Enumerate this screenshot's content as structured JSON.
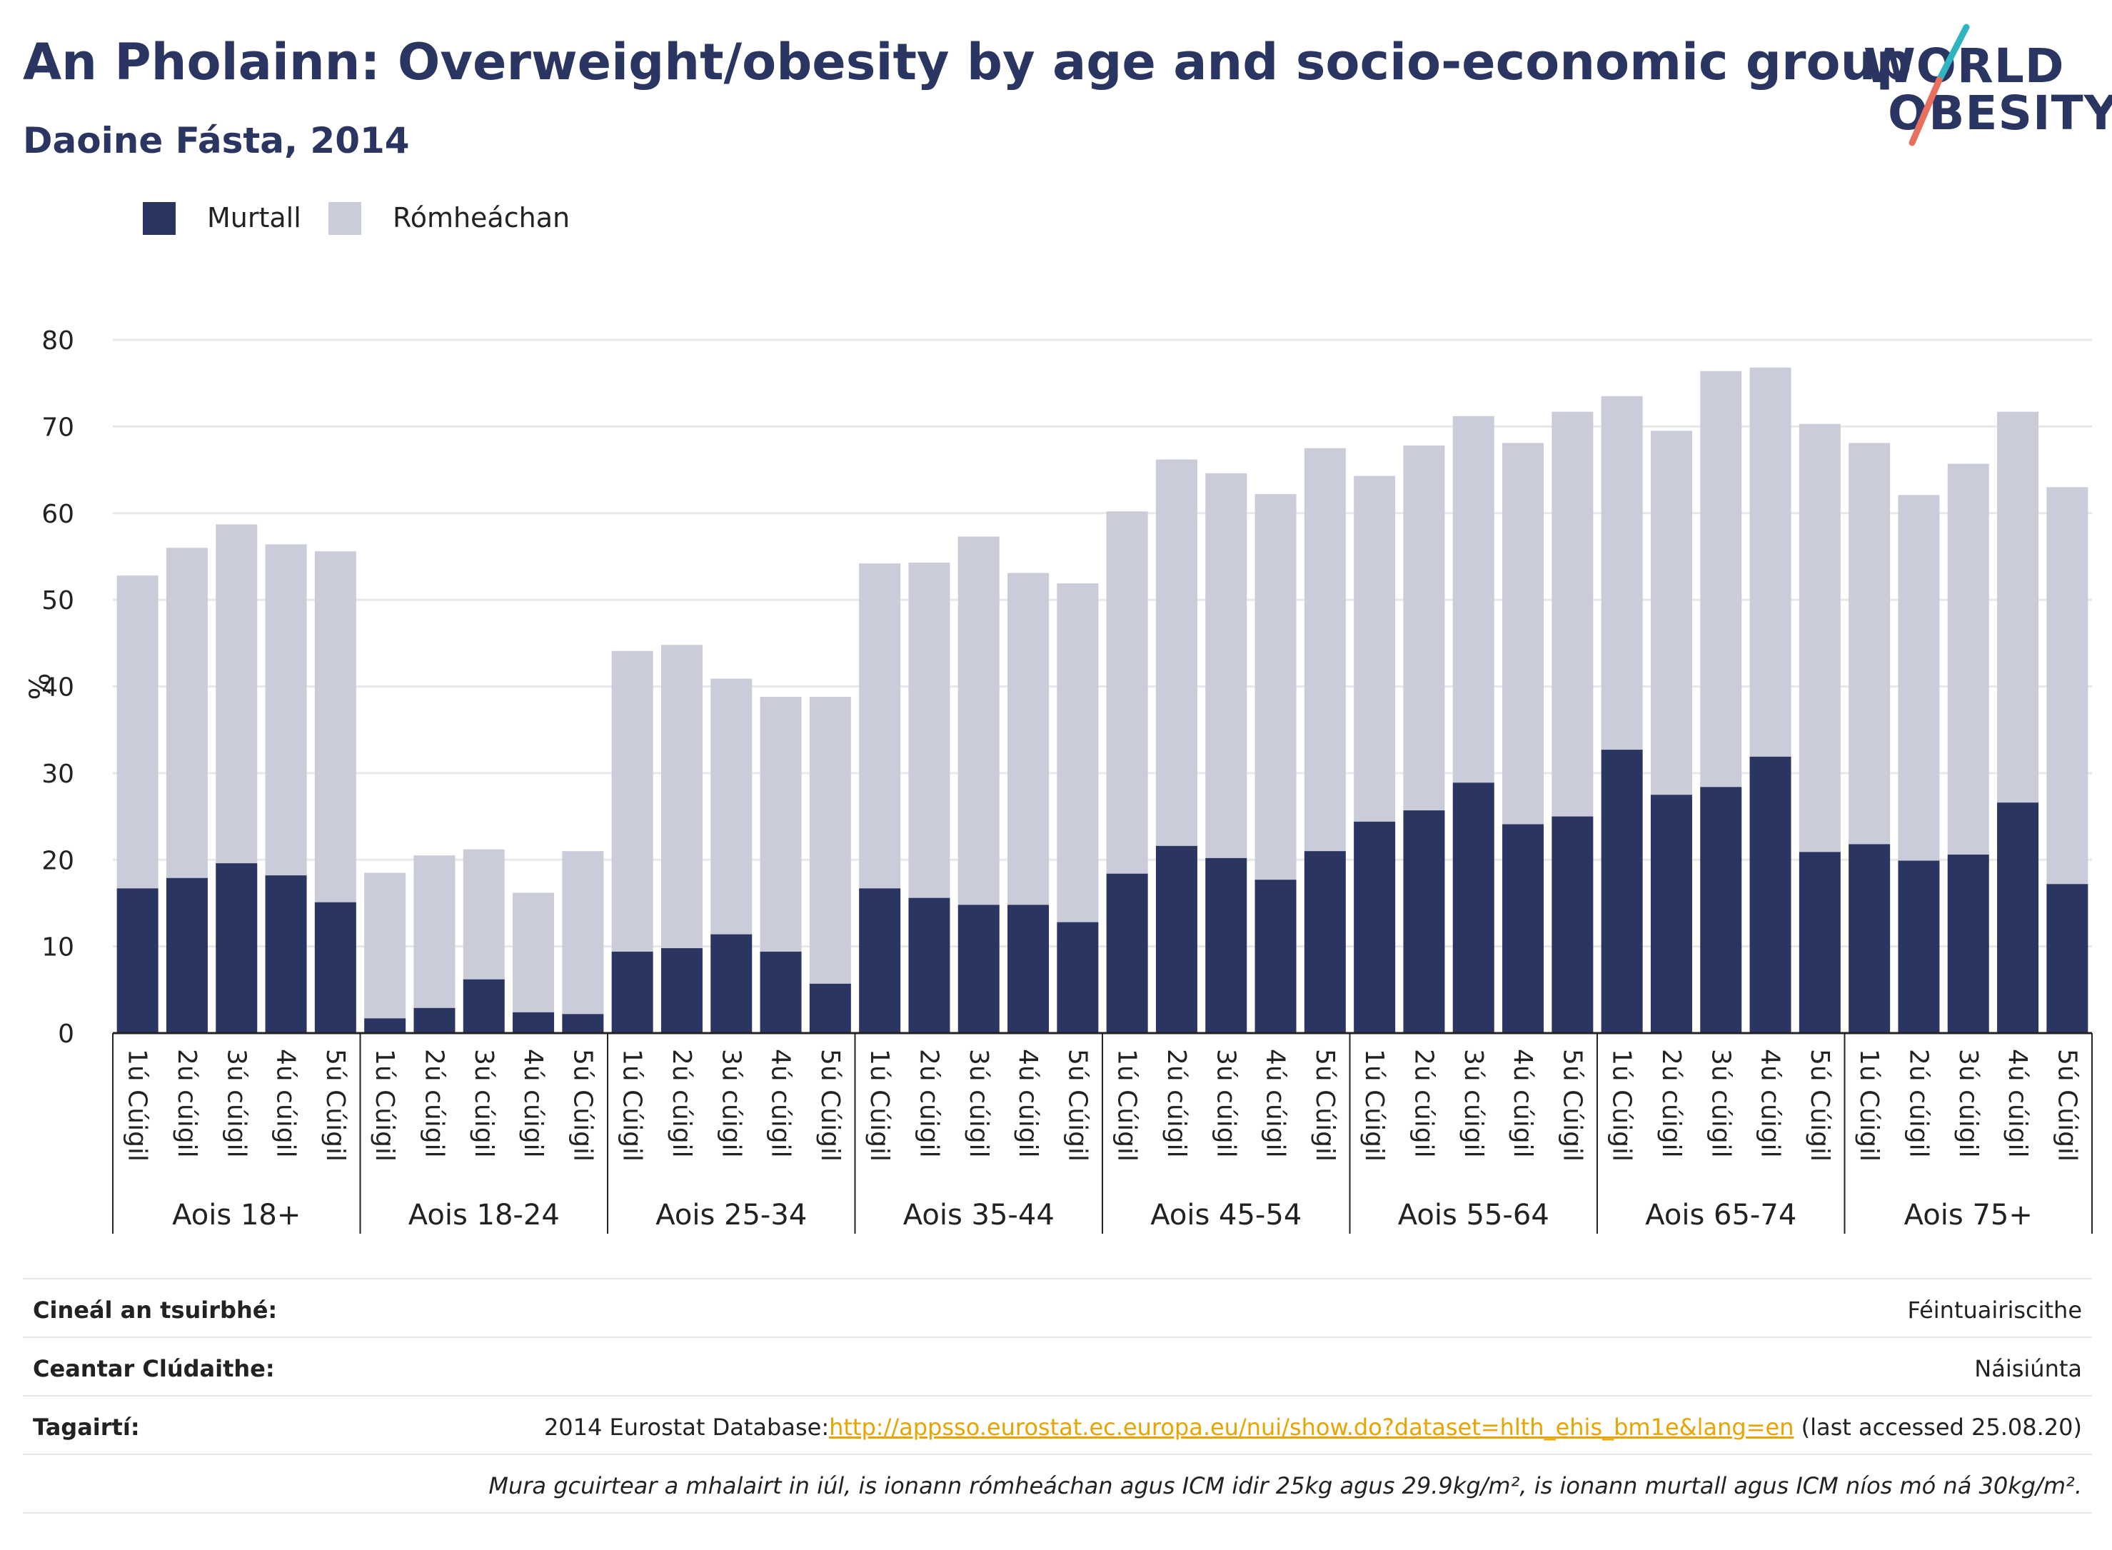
{
  "header": {
    "title": "An Pholainn: Overweight/obesity by age and socio-economic group",
    "subtitle": "Daoine Fásta, 2014"
  },
  "logo": {
    "line1": "WORLD",
    "line2": "OBESITY",
    "colors": {
      "text": "#2a3561",
      "slash_teal": "#2fb5c0",
      "slash_red": "#e8705e"
    }
  },
  "colors": {
    "obese": "#2a3561",
    "overweight": "#cbccd9",
    "grid": "#e8e8e8",
    "axis": "#222222",
    "link": "#e8a400"
  },
  "chart_data": {
    "type": "bar",
    "stacked": true,
    "ylabel": "%",
    "ylim": [
      0,
      80
    ],
    "yticks": [
      0,
      10,
      20,
      30,
      40,
      50,
      60,
      70,
      80
    ],
    "grid": true,
    "legend_position": "top-left",
    "groups": [
      {
        "label": "Aois 18+",
        "categories": [
          "1ú Cúigil",
          "2ú cúigil",
          "3ú cúigil",
          "4ú cúigil",
          "5ú Cúigil"
        ]
      },
      {
        "label": "Aois 18-24",
        "categories": [
          "1ú Cúigil",
          "2ú cúigil",
          "3ú cúigil",
          "4ú cúigil",
          "5ú Cúigil"
        ]
      },
      {
        "label": "Aois 25-34",
        "categories": [
          "1ú Cúigil",
          "2ú cúigil",
          "3ú cúigil",
          "4ú cúigil",
          "5ú Cúigil"
        ]
      },
      {
        "label": "Aois 35-44",
        "categories": [
          "1ú Cúigil",
          "2ú cúigil",
          "3ú cúigil",
          "4ú cúigil",
          "5ú Cúigil"
        ]
      },
      {
        "label": "Aois 45-54",
        "categories": [
          "1ú Cúigil",
          "2ú cúigil",
          "3ú cúigil",
          "4ú cúigil",
          "5ú Cúigil"
        ]
      },
      {
        "label": "Aois 55-64",
        "categories": [
          "1ú Cúigil",
          "2ú cúigil",
          "3ú cúigil",
          "4ú cúigil",
          "5ú Cúigil"
        ]
      },
      {
        "label": "Aois 65-74",
        "categories": [
          "1ú Cúigil",
          "2ú cúigil",
          "3ú cúigil",
          "4ú cúigil",
          "5ú Cúigil"
        ]
      },
      {
        "label": "Aois 75+",
        "categories": [
          "1ú Cúigil",
          "2ú cúigil",
          "3ú cúigil",
          "4ú cúigil",
          "5ú Cúigil"
        ]
      }
    ],
    "series": [
      {
        "name": "Murtall",
        "values": [
          16.7,
          17.9,
          19.6,
          18.2,
          15.1,
          1.7,
          2.9,
          6.2,
          2.4,
          2.2,
          9.4,
          9.8,
          11.4,
          9.4,
          5.7,
          16.7,
          15.6,
          14.8,
          14.8,
          12.8,
          18.4,
          21.6,
          20.2,
          17.7,
          21.0,
          24.4,
          25.7,
          28.9,
          24.1,
          25.0,
          32.7,
          27.5,
          28.4,
          31.9,
          20.9,
          21.8,
          19.9,
          20.6,
          26.6,
          17.2
        ]
      },
      {
        "name": "Rómheáchan",
        "values": [
          36.1,
          38.1,
          39.1,
          38.2,
          40.5,
          16.8,
          17.6,
          15.0,
          13.8,
          18.8,
          34.7,
          35.0,
          29.5,
          29.4,
          33.1,
          37.5,
          38.7,
          42.5,
          38.3,
          39.1,
          41.8,
          44.6,
          44.4,
          44.5,
          46.5,
          39.9,
          42.1,
          42.3,
          44.0,
          46.7,
          40.8,
          42.0,
          48.0,
          44.9,
          49.4,
          46.3,
          42.2,
          45.1,
          45.1,
          45.8
        ]
      }
    ]
  },
  "info": {
    "rows": [
      {
        "label": "Cineál an tsuirbhé:",
        "value": "Féintuairiscithe"
      },
      {
        "label": "Ceantar Clúdaithe:",
        "value": "Náisiúnta"
      },
      {
        "label": "Tagairtí:",
        "value_prefix": "2014 Eurostat Database:",
        "link": "http://appsso.eurostat.ec.europa.eu/nui/show.do?dataset=hlth_ehis_bm1e&lang=en",
        "value_suffix": " (last accessed 25.08.20)"
      }
    ],
    "note": "Mura gcuirtear a mhalairt in iúl, is ionann rómheáchan agus ICM idir 25kg agus 29.9kg/m², is ionann murtall agus ICM níos mó ná 30kg/m²."
  }
}
